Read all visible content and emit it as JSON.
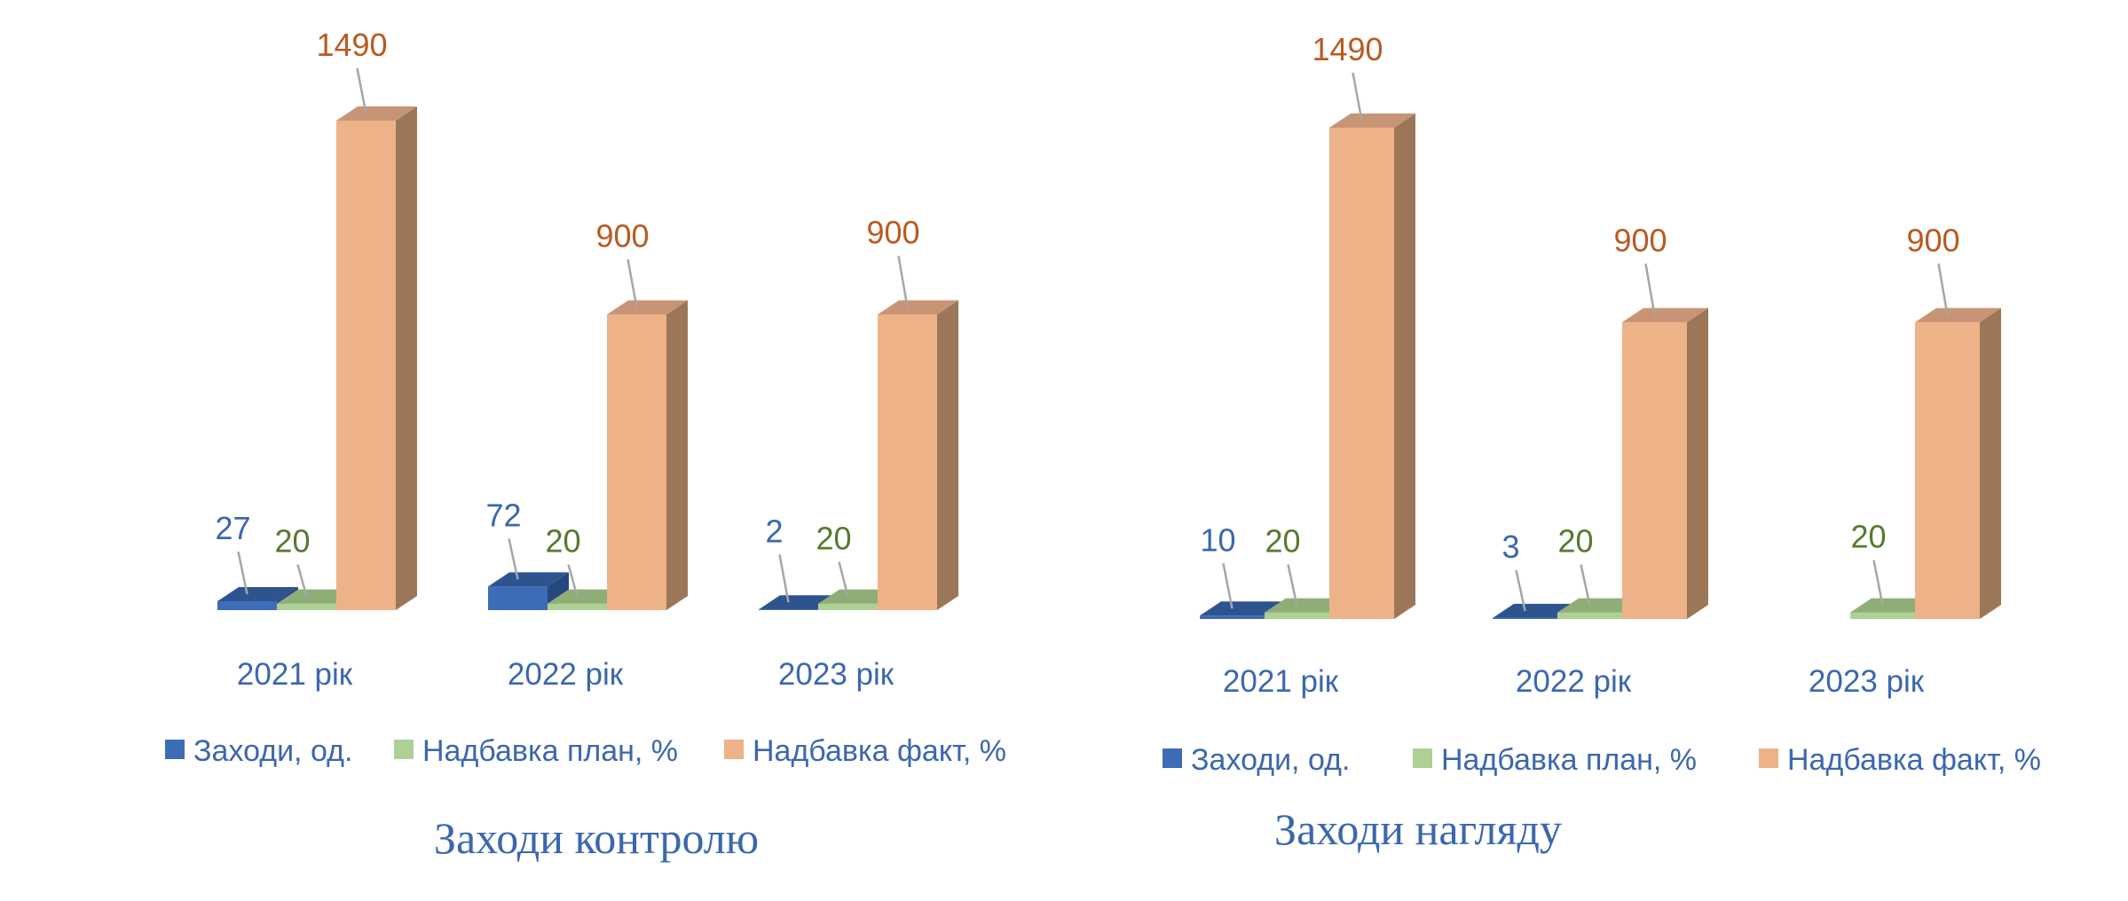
{
  "colors": {
    "series": [
      {
        "front": "#3D6DB7",
        "top": "#2E548F",
        "side": "#25487E",
        "label": "#3B67AE"
      },
      {
        "front": "#AFD095",
        "top": "#8FAE77",
        "side": "#7E9E68",
        "label": "#567A2E"
      },
      {
        "front": "#EEB289",
        "top": "#C79575",
        "side": "#9B7758",
        "label": "#B95A20"
      }
    ],
    "axis_text": "#3B67AE",
    "leader": "#A6A6A6"
  },
  "charts": [
    {
      "title": "Заходи контролю",
      "chart_data": {
        "type": "bar",
        "categories": [
          "2021 рік",
          "2022 рік",
          "2023 рік"
        ],
        "series": [
          {
            "name": "Заходи, од.",
            "values": [
              27,
              72,
              2
            ]
          },
          {
            "name": "Надбавка план, %",
            "values": [
              20,
              20,
              20
            ]
          },
          {
            "name": "Надбавка факт, %",
            "values": [
              1490,
              900,
              900
            ]
          }
        ],
        "legend": "bottom",
        "grid": false
      }
    },
    {
      "title": "Заходи нагляду",
      "chart_data": {
        "type": "bar",
        "categories": [
          "2021 рік",
          "2022 рік",
          "2023 рік"
        ],
        "series": [
          {
            "name": "Заходи, од.",
            "values": [
              10,
              3,
              null
            ]
          },
          {
            "name": "Надбавка план, %",
            "values": [
              20,
              20,
              20
            ]
          },
          {
            "name": "Надбавка факт, %",
            "values": [
              1490,
              900,
              900
            ]
          }
        ],
        "legend": "bottom",
        "grid": false
      }
    }
  ]
}
